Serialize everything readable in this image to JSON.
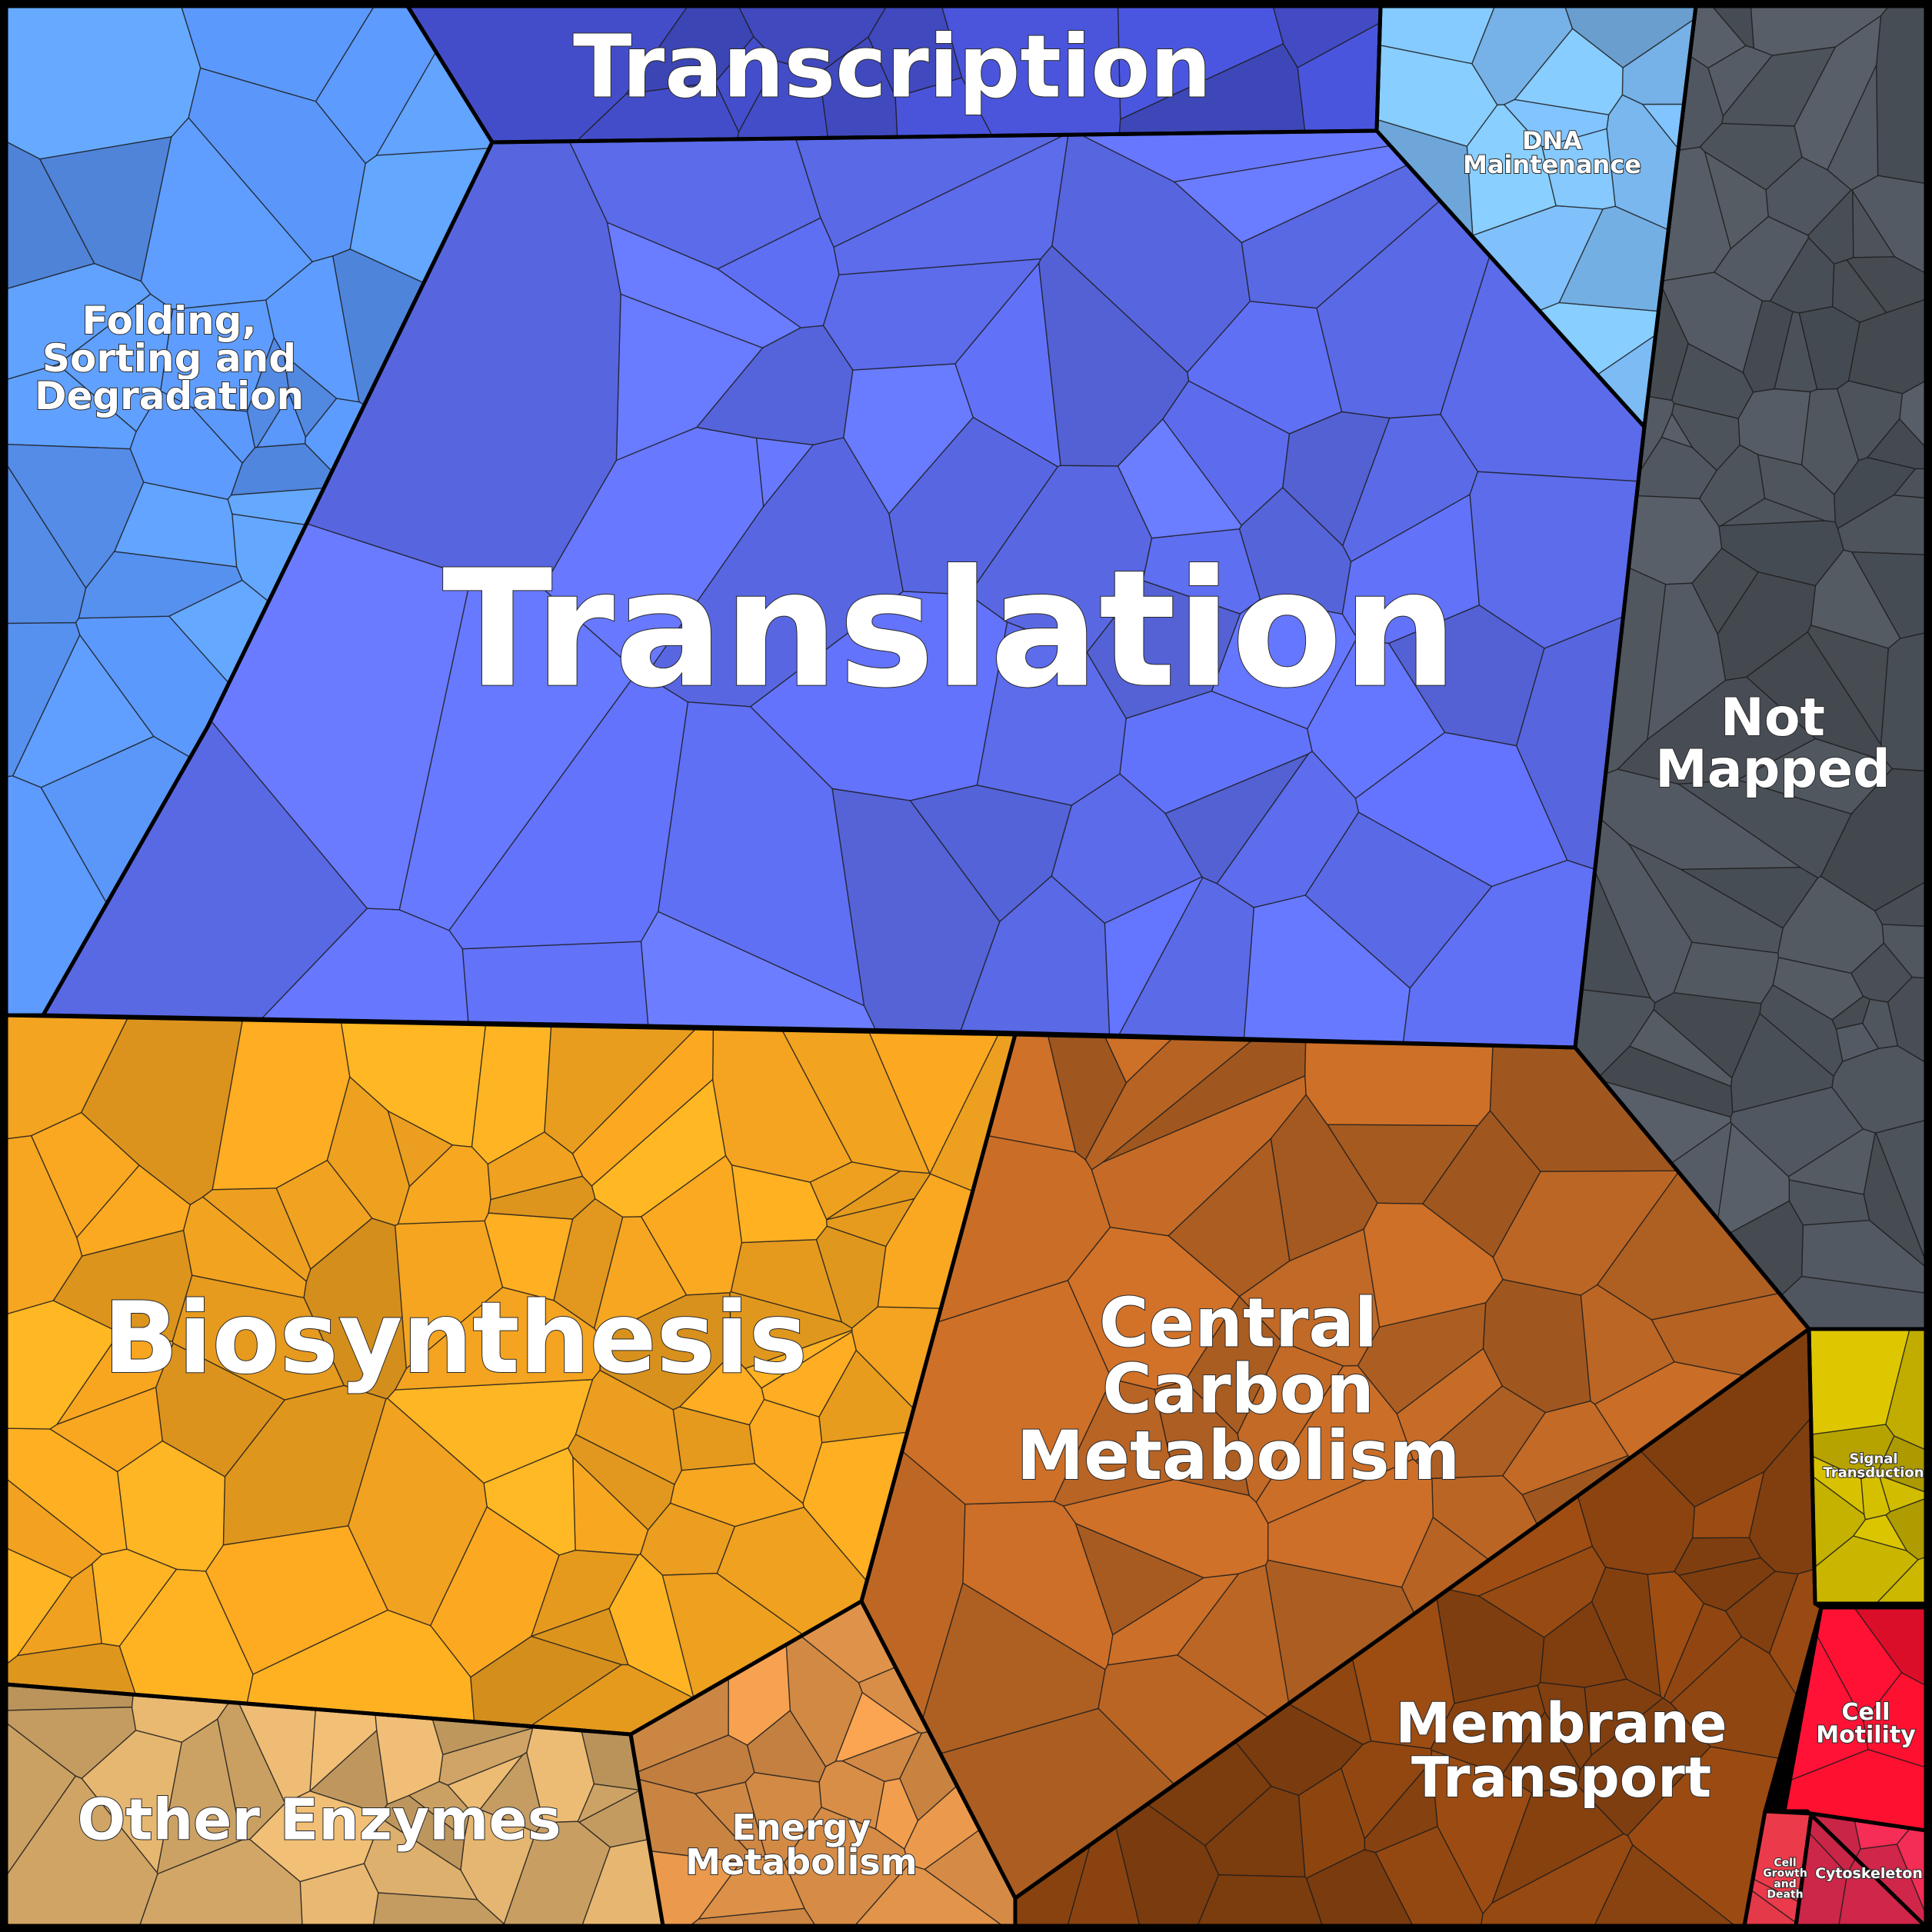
{
  "diagram": {
    "type": "voronoi-treemap",
    "categories": [
      {
        "id": "transcription",
        "label": [
          "Transcription"
        ],
        "color": "#4650D0"
      },
      {
        "id": "dna",
        "label": [
          "DNA",
          "Maintenance"
        ],
        "color": "#7AB8F0"
      },
      {
        "id": "folding",
        "label": [
          "Folding,",
          "Sorting and",
          "Degradation"
        ],
        "color": "#5A96F8"
      },
      {
        "id": "translation",
        "label": [
          "Translation"
        ],
        "color": "#5F6FF2"
      },
      {
        "id": "notmapped",
        "label": [
          "Not",
          "Mapped"
        ],
        "color": "#4E545C"
      },
      {
        "id": "biosynthesis",
        "label": [
          "Biosynthesis"
        ],
        "color": "#F4A420"
      },
      {
        "id": "central",
        "label": [
          "Central",
          "Carbon",
          "Metabolism"
        ],
        "color": "#B86424"
      },
      {
        "id": "membrane",
        "label": [
          "Membrane",
          "Transport"
        ],
        "color": "#8C4410"
      },
      {
        "id": "other",
        "label": [
          "Other Enzymes"
        ],
        "color": "#D4A868"
      },
      {
        "id": "energy",
        "label": [
          "Energy",
          "Metabolism"
        ],
        "color": "#DC9048"
      },
      {
        "id": "signal",
        "label": [
          "Signal",
          "Transduction"
        ],
        "color": "#C4B000"
      },
      {
        "id": "motility",
        "label": [
          "Cell",
          "Motility"
        ],
        "color": "#FF1030"
      },
      {
        "id": "growth",
        "label": [
          "Cell",
          "Growth",
          "and",
          "Death"
        ],
        "color": "#E03848"
      },
      {
        "id": "cytoskeleton",
        "label": [
          "Cytoskeleton"
        ],
        "color": "#D8284C"
      }
    ]
  }
}
